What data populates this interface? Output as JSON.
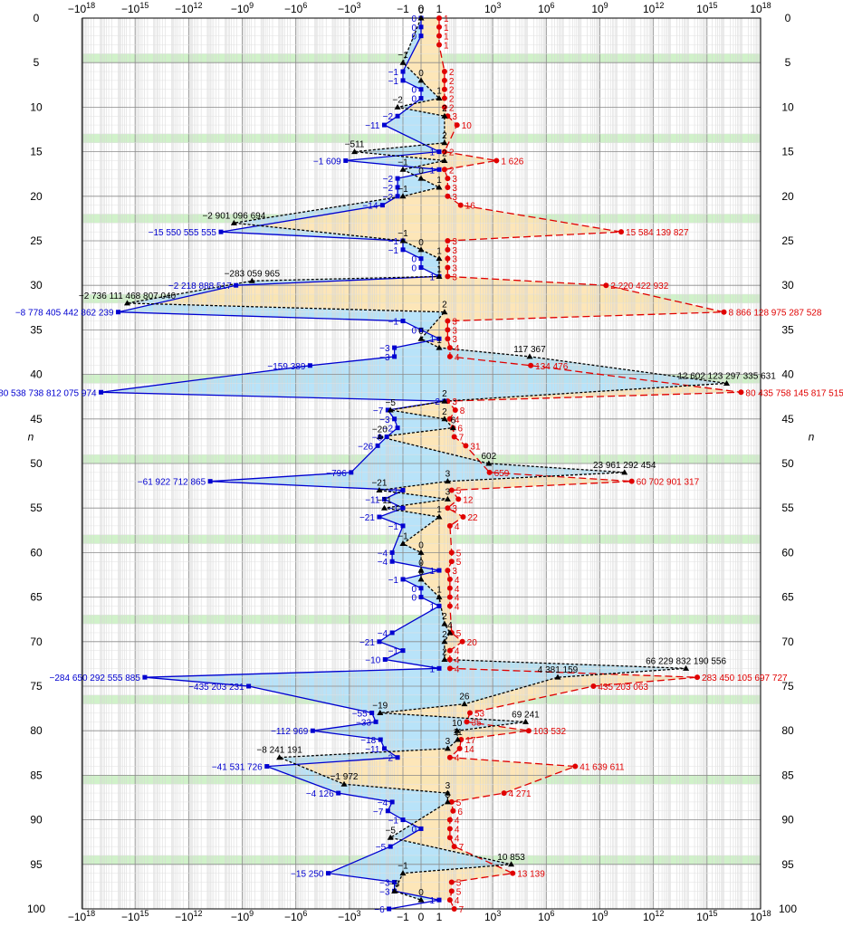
{
  "chart_data": {
    "type": "line",
    "x_scale": "symlog",
    "x_major_ticks": [
      {
        "value": -1e+18,
        "label": "−10",
        "exp": "18"
      },
      {
        "value": -1000000000000000.0,
        "label": "−10",
        "exp": "15"
      },
      {
        "value": -1000000000000.0,
        "label": "−10",
        "exp": "12"
      },
      {
        "value": -1000000000.0,
        "label": "−10",
        "exp": "9"
      },
      {
        "value": -1000000.0,
        "label": "−10",
        "exp": "6"
      },
      {
        "value": -1000.0,
        "label": "−10",
        "exp": "3"
      },
      {
        "value": -1,
        "label": "−1",
        "exp": ""
      },
      {
        "value": 0,
        "label": "0",
        "exp": ""
      },
      {
        "value": 1,
        "label": "1",
        "exp": ""
      },
      {
        "value": 1000.0,
        "label": "10",
        "exp": "3"
      },
      {
        "value": 1000000.0,
        "label": "10",
        "exp": "6"
      },
      {
        "value": 1000000000.0,
        "label": "10",
        "exp": "9"
      },
      {
        "value": 1000000000000.0,
        "label": "10",
        "exp": "12"
      },
      {
        "value": 1000000000000000.0,
        "label": "10",
        "exp": "15"
      },
      {
        "value": 1e+18,
        "label": "10",
        "exp": "18"
      }
    ],
    "xlim": [
      -1e+18,
      1e+18
    ],
    "ylim": [
      0,
      100
    ],
    "y_inverted": true,
    "y_ticks": [
      0,
      5,
      10,
      15,
      20,
      25,
      30,
      35,
      40,
      45,
      50,
      55,
      60,
      65,
      70,
      75,
      80,
      85,
      90,
      95,
      100
    ],
    "ylabel": "n",
    "grid": true,
    "highlight_rows": [
      4.5,
      13.5,
      22.5,
      31.5,
      40.5,
      49.5,
      58.5,
      67.5,
      76.5,
      85.5,
      94.5
    ],
    "colors": {
      "upper": "#e00000",
      "middle": "#000000",
      "lower": "#0000d0",
      "fill_upper": "#fde3b0",
      "fill_lower": "#b0e0f8",
      "highlight": "#c8f0c0"
    },
    "upper_points": [
      {
        "n": 0,
        "v": 1,
        "label": "1"
      },
      {
        "n": 1,
        "v": 1,
        "label": "1"
      },
      {
        "n": 2,
        "v": 1,
        "label": "1"
      },
      {
        "n": 3,
        "v": 1,
        "label": "1"
      },
      {
        "n": 6,
        "v": 2,
        "label": "2"
      },
      {
        "n": 7,
        "v": 2,
        "label": "2"
      },
      {
        "n": 8,
        "v": 2,
        "label": "2"
      },
      {
        "n": 9,
        "v": 2,
        "label": "2"
      },
      {
        "n": 10,
        "v": 2,
        "label": "2"
      },
      {
        "n": 11,
        "v": 3,
        "label": "3"
      },
      {
        "n": 12,
        "v": 10,
        "label": "10"
      },
      {
        "n": 15,
        "v": 2,
        "label": "2"
      },
      {
        "n": 16,
        "v": 1626,
        "label": "1 626"
      },
      {
        "n": 17,
        "v": 2,
        "label": "2"
      },
      {
        "n": 18,
        "v": 3,
        "label": "3"
      },
      {
        "n": 19,
        "v": 3,
        "label": "3"
      },
      {
        "n": 20,
        "v": 3,
        "label": "3"
      },
      {
        "n": 21,
        "v": 16,
        "label": "16"
      },
      {
        "n": 24,
        "v": 15584139827,
        "label": "15 584 139 827"
      },
      {
        "n": 25,
        "v": 3,
        "label": "3"
      },
      {
        "n": 26,
        "v": 3,
        "label": "3"
      },
      {
        "n": 27,
        "v": 3,
        "label": "3"
      },
      {
        "n": 28,
        "v": 3,
        "label": "3"
      },
      {
        "n": 29,
        "v": 3,
        "label": "3"
      },
      {
        "n": 30,
        "v": 2220422932,
        "label": "2 220 422 932"
      },
      {
        "n": 33,
        "v": 8866128975287528,
        "label": "8 866 128 975 287 528"
      },
      {
        "n": 34,
        "v": 3,
        "label": "3"
      },
      {
        "n": 35,
        "v": 3,
        "label": "3"
      },
      {
        "n": 36,
        "v": 3,
        "label": "3"
      },
      {
        "n": 37,
        "v": 4,
        "label": "4"
      },
      {
        "n": 38,
        "v": 4,
        "label": "4"
      },
      {
        "n": 39,
        "v": 134476,
        "label": "134 476"
      },
      {
        "n": 42,
        "v": 80435758145817515,
        "label": "80 435 758 145 817 515"
      },
      {
        "n": 43,
        "v": 3,
        "label": "3"
      },
      {
        "n": 44,
        "v": 8,
        "label": "8"
      },
      {
        "n": 45,
        "v": 4,
        "label": "4"
      },
      {
        "n": 46,
        "v": 6,
        "label": "6"
      },
      {
        "n": 47,
        "v": 7,
        "label": "7"
      },
      {
        "n": 48,
        "v": 31,
        "label": "31"
      },
      {
        "n": 51,
        "v": 659,
        "label": "659"
      },
      {
        "n": 52,
        "v": 60702901317,
        "label": "60 702 901 317"
      },
      {
        "n": 53,
        "v": 5,
        "label": "5"
      },
      {
        "n": 54,
        "v": 12,
        "label": "12"
      },
      {
        "n": 55,
        "v": 3,
        "label": "3"
      },
      {
        "n": 56,
        "v": 22,
        "label": "22"
      },
      {
        "n": 57,
        "v": 4,
        "label": "4"
      },
      {
        "n": 60,
        "v": 5,
        "label": "5"
      },
      {
        "n": 61,
        "v": 5,
        "label": "5"
      },
      {
        "n": 62,
        "v": 3,
        "label": "3"
      },
      {
        "n": 63,
        "v": 4,
        "label": "4"
      },
      {
        "n": 64,
        "v": 4,
        "label": "4"
      },
      {
        "n": 65,
        "v": 4,
        "label": "4"
      },
      {
        "n": 66,
        "v": 4,
        "label": "4"
      },
      {
        "n": 69,
        "v": 5,
        "label": "5"
      },
      {
        "n": 70,
        "v": 20,
        "label": "20"
      },
      {
        "n": 71,
        "v": 4,
        "label": "4"
      },
      {
        "n": 72,
        "v": 4,
        "label": "4"
      },
      {
        "n": 73,
        "v": 4,
        "label": "4"
      },
      {
        "n": 74,
        "v": 283450105697727,
        "label": "283 450 105 697 727"
      },
      {
        "n": 75,
        "v": 435203063,
        "label": "435 203 063"
      },
      {
        "n": 78,
        "v": 53,
        "label": "53"
      },
      {
        "n": 79,
        "v": 35,
        "label": "35"
      },
      {
        "n": 80,
        "v": 103532,
        "label": "103 532"
      },
      {
        "n": 81,
        "v": 17,
        "label": "17"
      },
      {
        "n": 82,
        "v": 14,
        "label": "14"
      },
      {
        "n": 83,
        "v": 4,
        "label": "4"
      },
      {
        "n": 84,
        "v": 41639611,
        "label": "41 639 611"
      },
      {
        "n": 87,
        "v": 4271,
        "label": "4 271"
      },
      {
        "n": 88,
        "v": 5,
        "label": "5"
      },
      {
        "n": 89,
        "v": 6,
        "label": "6"
      },
      {
        "n": 90,
        "v": 4,
        "label": "4"
      },
      {
        "n": 91,
        "v": 4,
        "label": "4"
      },
      {
        "n": 92,
        "v": 4,
        "label": "4"
      },
      {
        "n": 93,
        "v": 7,
        "label": "7"
      },
      {
        "n": 96,
        "v": 13139,
        "label": "13 139"
      },
      {
        "n": 97,
        "v": 5,
        "label": "5"
      },
      {
        "n": 98,
        "v": 5,
        "label": "5"
      },
      {
        "n": 99,
        "v": 4,
        "label": "4"
      },
      {
        "n": 100,
        "v": 7,
        "label": "7"
      }
    ],
    "middle_points": [
      {
        "n": 0,
        "v": 0,
        "label": "0"
      },
      {
        "n": 5,
        "v": -1,
        "label": "−1"
      },
      {
        "n": 7,
        "v": 0,
        "label": "0"
      },
      {
        "n": 9,
        "v": 1,
        "label": "1"
      },
      {
        "n": 10,
        "v": -2,
        "label": "−2"
      },
      {
        "n": 11,
        "v": 2,
        "label": "2"
      },
      {
        "n": 14,
        "v": 2,
        "label": "2"
      },
      {
        "n": 15,
        "v": -511,
        "label": "−511"
      },
      {
        "n": 16,
        "v": 2,
        "label": "2"
      },
      {
        "n": 17,
        "v": -1,
        "label": "−1"
      },
      {
        "n": 18,
        "v": 0,
        "label": "0"
      },
      {
        "n": 19,
        "v": 1,
        "label": "1"
      },
      {
        "n": 20,
        "v": -1,
        "label": "−1"
      },
      {
        "n": 23,
        "v": -2901096694,
        "label": "−2 901 096 694"
      },
      {
        "n": 25,
        "v": -1,
        "label": "−1"
      },
      {
        "n": 26,
        "v": 0,
        "label": "0"
      },
      {
        "n": 27,
        "v": 1,
        "label": "1"
      },
      {
        "n": 29,
        "v": 1,
        "label": "1"
      },
      {
        "n": 29.5,
        "v": -283059965,
        "label": "−283 059 965"
      },
      {
        "n": 32,
        "v": -2736111468807040,
        "label": "−2 736 111 468 807 040"
      },
      {
        "n": 33,
        "v": 2,
        "label": "2"
      },
      {
        "n": 36,
        "v": 0,
        "label": "0"
      },
      {
        "n": 37,
        "v": 1,
        "label": "1"
      },
      {
        "n": 38,
        "v": 117367,
        "label": "117 367"
      },
      {
        "n": 41,
        "v": 12602123297335631,
        "label": "12 602 123 297 335 631"
      },
      {
        "n": 43,
        "v": 2,
        "label": "2"
      },
      {
        "n": 44,
        "v": -5,
        "label": "−5"
      },
      {
        "n": 45,
        "v": 2,
        "label": "2"
      },
      {
        "n": 46,
        "v": 6,
        "label": "6"
      },
      {
        "n": 47,
        "v": -20,
        "label": "−20"
      },
      {
        "n": 50,
        "v": 602,
        "label": "602"
      },
      {
        "n": 51,
        "v": 23961292454,
        "label": "23 961 292 454"
      },
      {
        "n": 52,
        "v": 3,
        "label": "3"
      },
      {
        "n": 53,
        "v": -21,
        "label": "−21"
      },
      {
        "n": 54,
        "v": 3,
        "label": "3"
      },
      {
        "n": 55,
        "v": -11,
        "label": "−11"
      },
      {
        "n": 56,
        "v": 1,
        "label": "1"
      },
      {
        "n": 59,
        "v": -1,
        "label": "−1"
      },
      {
        "n": 60,
        "v": 0,
        "label": "0"
      },
      {
        "n": 62,
        "v": 0,
        "label": "0"
      },
      {
        "n": 63,
        "v": 0,
        "label": "0"
      },
      {
        "n": 65,
        "v": 1,
        "label": "1"
      },
      {
        "n": 68,
        "v": 2,
        "label": "2"
      },
      {
        "n": 69,
        "v": 4,
        "label": "4"
      },
      {
        "n": 70,
        "v": 2,
        "label": "2"
      },
      {
        "n": 72,
        "v": 2,
        "label": "2"
      },
      {
        "n": 73,
        "v": 66229832190556,
        "label": "66 229 832 190 556"
      },
      {
        "n": 74,
        "v": 4381159,
        "label": "4 381 159"
      },
      {
        "n": 77,
        "v": 26,
        "label": "26"
      },
      {
        "n": 78,
        "v": -19,
        "label": "−19"
      },
      {
        "n": 79,
        "v": 69241,
        "label": "69 241"
      },
      {
        "n": 80,
        "v": 10,
        "label": "10"
      },
      {
        "n": 81,
        "v": 11,
        "label": "11"
      },
      {
        "n": 82,
        "v": 3,
        "label": "3"
      },
      {
        "n": 83,
        "v": -8241191,
        "label": "−8 241 191"
      },
      {
        "n": 86,
        "v": -1972,
        "label": "−1 972"
      },
      {
        "n": 87,
        "v": 3,
        "label": "3"
      },
      {
        "n": 88,
        "v": 3,
        "label": "3"
      },
      {
        "n": 92,
        "v": -5,
        "label": "−5"
      },
      {
        "n": 95,
        "v": 10853,
        "label": "10 853"
      },
      {
        "n": 96,
        "v": -1,
        "label": "−1"
      },
      {
        "n": 98,
        "v": -3,
        "label": "−3"
      },
      {
        "n": 99,
        "v": 0,
        "label": "0"
      }
    ],
    "lower_points": [
      {
        "n": 0,
        "v": 0,
        "label": "0"
      },
      {
        "n": 1,
        "v": 0,
        "label": "0"
      },
      {
        "n": 2,
        "v": 0,
        "label": "0"
      },
      {
        "n": 6,
        "v": -1,
        "label": "−1"
      },
      {
        "n": 7,
        "v": -1,
        "label": "−1"
      },
      {
        "n": 8,
        "v": 0,
        "label": "0"
      },
      {
        "n": 9,
        "v": 0,
        "label": "0"
      },
      {
        "n": 11,
        "v": -2,
        "label": "−2"
      },
      {
        "n": 12,
        "v": -11,
        "label": "−11"
      },
      {
        "n": 15,
        "v": 1,
        "label": "1"
      },
      {
        "n": 16,
        "v": -1609,
        "label": "−1 609"
      },
      {
        "n": 17,
        "v": 1,
        "label": "1"
      },
      {
        "n": 18,
        "v": -2,
        "label": "−2"
      },
      {
        "n": 19,
        "v": -2,
        "label": "−2"
      },
      {
        "n": 20,
        "v": -2,
        "label": "−2"
      },
      {
        "n": 21,
        "v": -14,
        "label": "−14"
      },
      {
        "n": 24,
        "v": -15550555555,
        "label": "−15 550 555 555"
      },
      {
        "n": 25,
        "v": -1,
        "label": "−1"
      },
      {
        "n": 26,
        "v": -1,
        "label": "−1"
      },
      {
        "n": 27,
        "v": 0,
        "label": "0"
      },
      {
        "n": 28,
        "v": 0,
        "label": "0"
      },
      {
        "n": 29,
        "v": 1,
        "label": "1"
      },
      {
        "n": 30,
        "v": -2218888517,
        "label": "−2 218 888 517"
      },
      {
        "n": 33,
        "v": -8778405442862239,
        "label": "−8 778 405 442 862 239"
      },
      {
        "n": 34,
        "v": -1,
        "label": "−1"
      },
      {
        "n": 35,
        "v": 0,
        "label": "0"
      },
      {
        "n": 36,
        "v": 1,
        "label": "1"
      },
      {
        "n": 37,
        "v": -3,
        "label": "−3"
      },
      {
        "n": 38,
        "v": -3,
        "label": "−3"
      },
      {
        "n": 39,
        "v": -159389,
        "label": "−159 389"
      },
      {
        "n": 42,
        "v": -80538738812075974,
        "label": "−80 538 738 812 075 974"
      },
      {
        "n": 43,
        "v": 2,
        "label": "2"
      },
      {
        "n": 44,
        "v": -7,
        "label": "−7"
      },
      {
        "n": 45,
        "v": -3,
        "label": "−3"
      },
      {
        "n": 46,
        "v": -2,
        "label": "−2"
      },
      {
        "n": 47,
        "v": -8,
        "label": "−8"
      },
      {
        "n": 48,
        "v": -26,
        "label": "−26"
      },
      {
        "n": 51,
        "v": -796,
        "label": "−796"
      },
      {
        "n": 52,
        "v": -61922712865,
        "label": "−61 922 712 865"
      },
      {
        "n": 53,
        "v": -1,
        "label": "−1"
      },
      {
        "n": 54,
        "v": -11,
        "label": "−11"
      },
      {
        "n": 55,
        "v": -1,
        "label": "−1"
      },
      {
        "n": 56,
        "v": -21,
        "label": "−21"
      },
      {
        "n": 57,
        "v": -1,
        "label": "−1"
      },
      {
        "n": 60,
        "v": -4,
        "label": "−4"
      },
      {
        "n": 61,
        "v": -4,
        "label": "−4"
      },
      {
        "n": 62,
        "v": 1,
        "label": "1"
      },
      {
        "n": 63,
        "v": -1,
        "label": "−1"
      },
      {
        "n": 64,
        "v": 0,
        "label": "0"
      },
      {
        "n": 65,
        "v": 0,
        "label": "0"
      },
      {
        "n": 66,
        "v": 1,
        "label": "1"
      },
      {
        "n": 69,
        "v": -4,
        "label": "−4"
      },
      {
        "n": 70,
        "v": -21,
        "label": "−21"
      },
      {
        "n": 71,
        "v": -1,
        "label": "−1"
      },
      {
        "n": 72,
        "v": -10,
        "label": "−10"
      },
      {
        "n": 73,
        "v": 1,
        "label": "1"
      },
      {
        "n": 74,
        "v": -284650292555885,
        "label": "−284 650 292 555 885"
      },
      {
        "n": 75,
        "v": -435203231,
        "label": "−435 203 231"
      },
      {
        "n": 78,
        "v": -55,
        "label": "−55"
      },
      {
        "n": 79,
        "v": -33,
        "label": "−33"
      },
      {
        "n": 80,
        "v": -112969,
        "label": "−112 969"
      },
      {
        "n": 81,
        "v": -18,
        "label": "−18"
      },
      {
        "n": 82,
        "v": -11,
        "label": "−11"
      },
      {
        "n": 83,
        "v": -2,
        "label": "−2"
      },
      {
        "n": 84,
        "v": -41531726,
        "label": "−41 531 726"
      },
      {
        "n": 87,
        "v": -4126,
        "label": "−4 126"
      },
      {
        "n": 88,
        "v": -4,
        "label": "−4"
      },
      {
        "n": 89,
        "v": -7,
        "label": "−7"
      },
      {
        "n": 90,
        "v": -1,
        "label": "−1"
      },
      {
        "n": 91,
        "v": 0,
        "label": "0"
      },
      {
        "n": 93,
        "v": -5,
        "label": "−5"
      },
      {
        "n": 96,
        "v": -15250,
        "label": "−15 250"
      },
      {
        "n": 97,
        "v": -3,
        "label": "−3"
      },
      {
        "n": 98,
        "v": -3,
        "label": "−3"
      },
      {
        "n": 99,
        "v": 1,
        "label": "1"
      },
      {
        "n": 100,
        "v": -6,
        "label": "−6"
      }
    ]
  }
}
